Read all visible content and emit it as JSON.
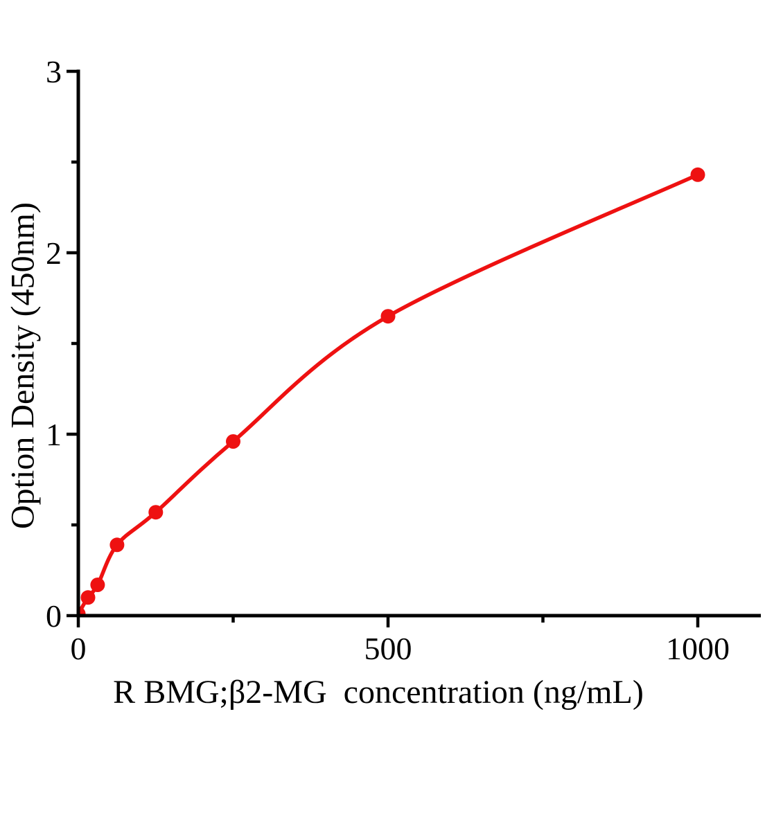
{
  "chart_data": {
    "type": "scatter",
    "title": "",
    "xlabel": "R BMG;β2-MG  concentration（ng/mL）",
    "ylabel": "Option Density（450nm）",
    "x": [
      0,
      15.625,
      31.25,
      62.5,
      125,
      250,
      500,
      1000
    ],
    "y": [
      0.01,
      0.1,
      0.17,
      0.39,
      0.57,
      0.96,
      1.65,
      2.43
    ],
    "fit": "smooth saturating curve through all points",
    "xlim": [
      0,
      1102
    ],
    "ylim": [
      0,
      3
    ],
    "x_major_ticks": [
      0,
      500,
      1000
    ],
    "x_minor_ticks": [
      250,
      750
    ],
    "y_major_ticks": [
      0,
      1,
      2,
      3
    ],
    "y_minor_ticks": [
      0.5,
      1.5,
      2.5
    ],
    "grid": false,
    "legend": null,
    "marker": "circle",
    "colors": {
      "curve": "#ee1111",
      "marker": "#ee1111",
      "axis": "#000000",
      "text": "#000000"
    }
  }
}
